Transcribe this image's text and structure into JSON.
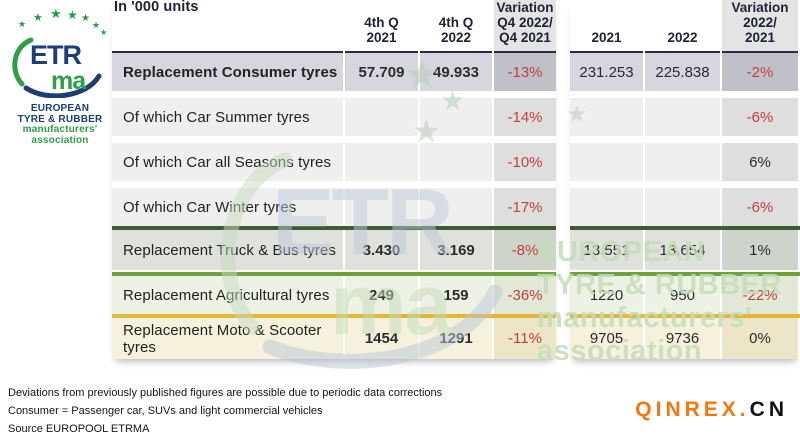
{
  "logo": {
    "etr": "ETR",
    "ma": "ma",
    "lines": [
      "EUROPEAN",
      "TYRE & RUBBER",
      "manufacturers'",
      "association"
    ]
  },
  "table": {
    "unit_header": "In '000 units",
    "columns_left": [
      [
        "4th Q",
        "2021"
      ],
      [
        "4th Q",
        "2022"
      ],
      [
        "Variation",
        "Q4 2022/",
        "Q4 2021"
      ]
    ],
    "columns_right": [
      [
        "2021"
      ],
      [
        "2022"
      ],
      [
        "Variation",
        "2022/",
        "2021"
      ]
    ],
    "rows": [
      {
        "label": "Replacement Consumer tyres",
        "style": "consumer",
        "q4_2021": "57.709",
        "q4_2022": "49.933",
        "var_q4": "-13%",
        "y2021": "231.253",
        "y2022": "225.838",
        "var_year": "-2%"
      },
      {
        "label": "Of which Car Summer tyres",
        "style": "light",
        "q4_2021": "",
        "q4_2022": "",
        "var_q4": "-14%",
        "y2021": "",
        "y2022": "",
        "var_year": "-6%"
      },
      {
        "label": "Of which Car all Seasons tyres",
        "style": "light",
        "q4_2021": "",
        "q4_2022": "",
        "var_q4": "-10%",
        "y2021": "",
        "y2022": "",
        "var_year": "6%"
      },
      {
        "label": "Of which Car Winter tyres",
        "style": "light",
        "q4_2021": "",
        "q4_2022": "",
        "var_q4": "-17%",
        "y2021": "",
        "y2022": "",
        "var_year": "-6%"
      },
      {
        "label": "Replacement Truck & Bus tyres",
        "style": "truck",
        "q4_2021": "3.430",
        "q4_2022": "3.169",
        "var_q4": "-8%",
        "y2021": "13.551",
        "y2022": "13.654",
        "var_year": "1%"
      },
      {
        "label": "Replacement Agricultural tyres",
        "style": "agri",
        "q4_2021": "249",
        "q4_2022": "159",
        "var_q4": "-36%",
        "y2021": "1220",
        "y2022": "950",
        "var_year": "-22%"
      },
      {
        "label": "Replacement Moto & Scooter tyres",
        "style": "moto",
        "q4_2021": "1454",
        "q4_2022": "1291",
        "var_q4": "-11%",
        "y2021": "9705",
        "y2022": "9736",
        "var_year": "0%"
      }
    ]
  },
  "chart_data": {
    "type": "table",
    "columns": [
      "In '000 units",
      "4th Q 2021",
      "4th Q 2022",
      "Variation Q4 2022/Q4 2021",
      "2021",
      "2022",
      "Variation 2022/2021"
    ],
    "rows": [
      [
        "Replacement Consumer tyres",
        "57.709",
        "49.933",
        "-13%",
        "231.253",
        "225.838",
        "-2%"
      ],
      [
        "Of which Car Summer tyres",
        "",
        "",
        "-14%",
        "",
        "",
        "-6%"
      ],
      [
        "Of which Car all Seasons tyres",
        "",
        "",
        "-10%",
        "",
        "",
        "6%"
      ],
      [
        "Of which Car Winter tyres",
        "",
        "",
        "-17%",
        "",
        "",
        "-6%"
      ],
      [
        "Replacement Truck & Bus tyres",
        "3.430",
        "3.169",
        "-8%",
        "13.551",
        "13.654",
        "1%"
      ],
      [
        "Replacement Agricultural tyres",
        "249",
        "159",
        "-36%",
        "1220",
        "950",
        "-22%"
      ],
      [
        "Replacement Moto & Scooter tyres",
        "1454",
        "1291",
        "-11%",
        "9705",
        "9736",
        "0%"
      ]
    ]
  },
  "watermark": {
    "etr": "ETR",
    "ma": "ma",
    "lines": [
      "EUROPEAN",
      "TYRE & RUBBER",
      "manufacturers'",
      "association"
    ]
  },
  "footnotes": [
    "Deviations from previously published figures are possible due to periodic data corrections",
    "Consumer = Passenger car, SUVs and light commercial vehicles",
    "Source EUROPOOL ETRMA"
  ],
  "credit": {
    "brand": "QINREX.",
    "suffix": "CN"
  },
  "colors": {
    "navy": "#262c50",
    "red": "#c2403c",
    "green_dark": "#3d5a32",
    "green_bright": "#6aa23c",
    "gold": "#e2b637",
    "orange": "#f5760b",
    "logo_navy": "#1c3e74",
    "logo_green": "#2f9e49"
  }
}
